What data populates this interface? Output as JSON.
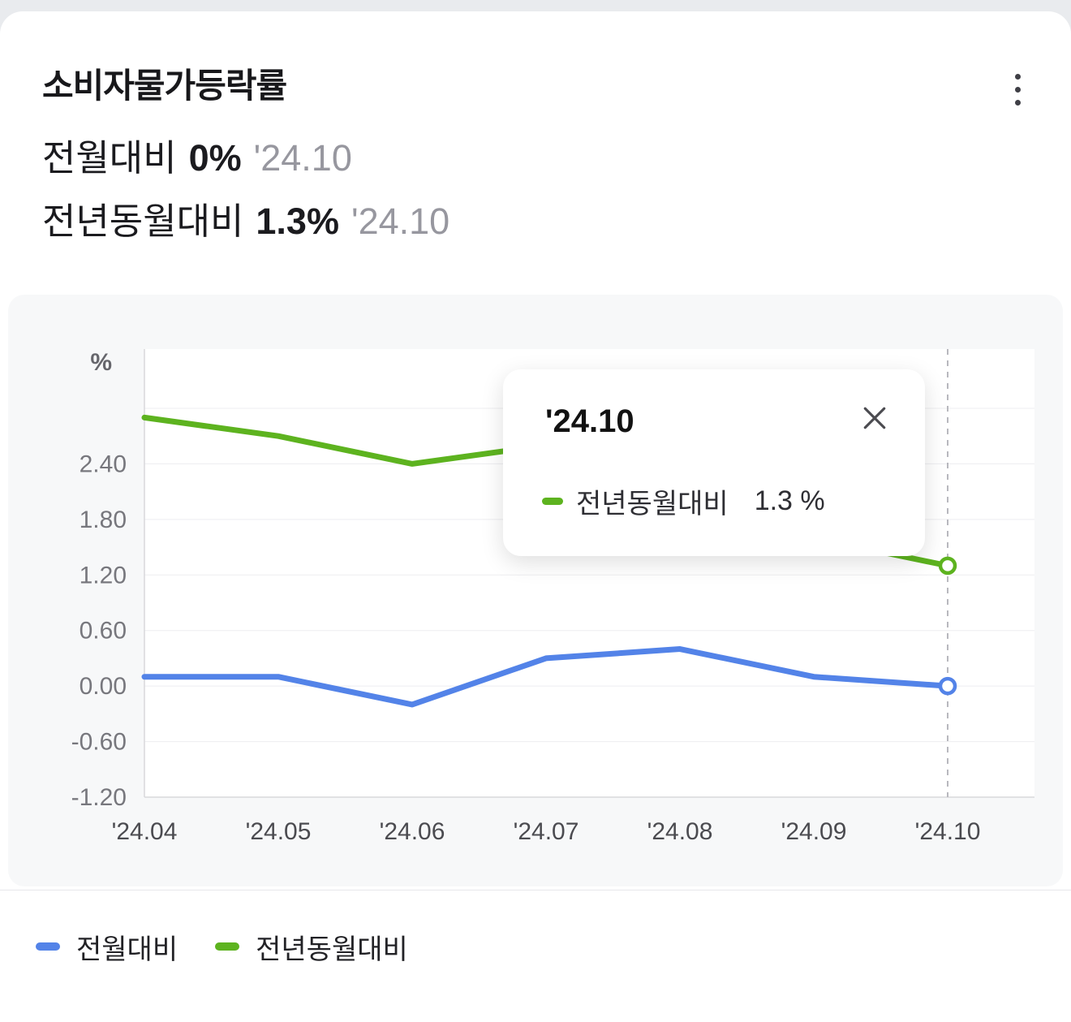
{
  "header": {
    "title": "소비자물가등락률",
    "stats": [
      {
        "label": "전월대비",
        "value": "0%",
        "date": "'24.10"
      },
      {
        "label": "전년동월대비",
        "value": "1.3%",
        "date": "'24.10"
      }
    ]
  },
  "icons": {
    "menu": "kebab-menu",
    "close": "close-x"
  },
  "chart_data": {
    "type": "line",
    "unit": "%",
    "categories": [
      "'24.04",
      "'24.05",
      "'24.06",
      "'24.07",
      "'24.08",
      "'24.09",
      "'24.10"
    ],
    "series": [
      {
        "name": "전월대비",
        "color": "#5383e8",
        "values": [
          0.1,
          0.1,
          -0.2,
          0.3,
          0.4,
          0.1,
          0.0
        ]
      },
      {
        "name": "전년동월대비",
        "color": "#5db31f",
        "values": [
          2.9,
          2.7,
          2.4,
          2.6,
          2.0,
          1.6,
          1.3
        ]
      }
    ],
    "ylim": [
      -1.2,
      3.64
    ],
    "yticks": [
      {
        "v": -1.2,
        "label": "-1.20"
      },
      {
        "v": -0.6,
        "label": "-0.60"
      },
      {
        "v": 0.0,
        "label": "0.00"
      },
      {
        "v": 0.6,
        "label": "0.60"
      },
      {
        "v": 1.2,
        "label": "1.20"
      },
      {
        "v": 1.8,
        "label": "1.80"
      },
      {
        "v": 2.4,
        "label": "2.40"
      },
      {
        "v": 3.0,
        "label": ""
      }
    ],
    "grid": true,
    "legend_position": "bottom",
    "highlight_index": 6
  },
  "tooltip": {
    "title": "'24.10",
    "series_label": "전년동월대비",
    "value": "1.3",
    "unit": "%",
    "color": "#5db31f"
  },
  "legend": [
    {
      "label": "전월대비",
      "color": "#5383e8"
    },
    {
      "label": "전년동월대비",
      "color": "#5db31f"
    }
  ]
}
